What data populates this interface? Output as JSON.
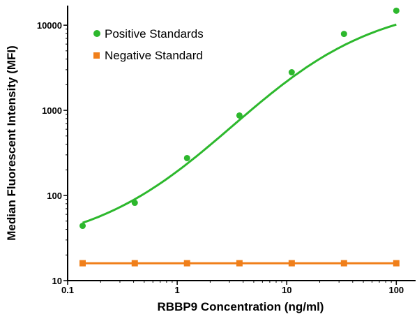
{
  "chart_data": {
    "type": "scatter",
    "xscale": "log",
    "yscale": "log",
    "xlabel": "RBBP9 Concentration (ng/ml)",
    "ylabel": "Median Fluorescent Intensity (MFI)",
    "xlim": [
      0.1,
      150
    ],
    "ylim": [
      10,
      17000
    ],
    "xticks": [
      0.1,
      1,
      10,
      100
    ],
    "xtick_labels": [
      "0.1",
      "1",
      "10",
      "100"
    ],
    "yticks": [
      10,
      100,
      1000,
      10000
    ],
    "ytick_labels": [
      "10",
      "100",
      "1000",
      "10000"
    ],
    "grid": false,
    "legend_position": "top-left",
    "series": [
      {
        "name": "Positive Standards",
        "color": "#2db82d",
        "marker": "circle",
        "fit": "sigmoid",
        "x": [
          0.137,
          0.41,
          1.23,
          3.7,
          11.1,
          33.3,
          100
        ],
        "y": [
          44,
          82,
          275,
          870,
          2800,
          7900,
          14800
        ]
      },
      {
        "name": "Negative Standard",
        "color": "#f07f1a",
        "marker": "square",
        "fit": "line",
        "x": [
          0.137,
          0.41,
          1.23,
          3.7,
          11.1,
          33.3,
          100
        ],
        "y": [
          16,
          16,
          16,
          16,
          16,
          16,
          16
        ]
      }
    ]
  }
}
